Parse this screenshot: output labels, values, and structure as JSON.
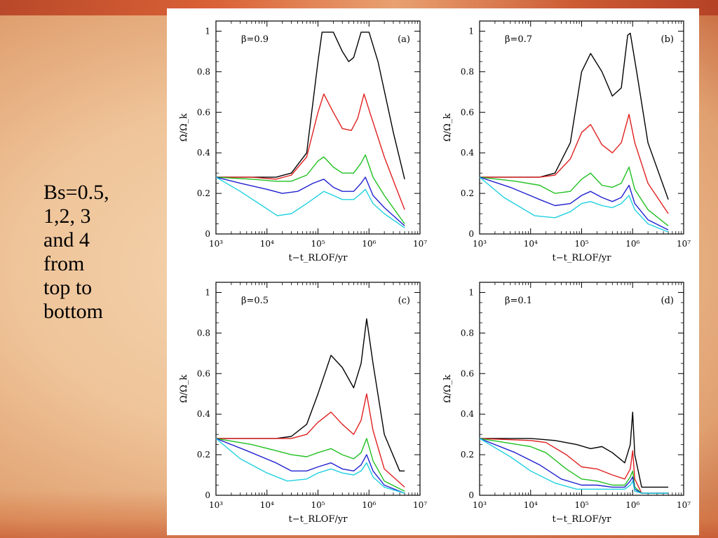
{
  "slide": {
    "side_text": "Bs=0.5,\n1,2, 3\nand 4\nfrom\ntop to\nbottom"
  },
  "colors": {
    "series": [
      "#000000",
      "#e02020",
      "#20c020",
      "#2020d0",
      "#20d0e0"
    ]
  },
  "chart_data": [
    {
      "type": "line",
      "panel": "(a)",
      "annotation": "β=0.9",
      "xlabel": "t−t_RLOF/yr",
      "ylabel": "Ω/Ω_k",
      "xscale": "log",
      "xlim": [
        1000,
        10000000
      ],
      "ylim": [
        0,
        1.05
      ],
      "xticks": [
        "10³",
        "10⁴",
        "10⁵",
        "10⁶",
        "10⁷"
      ],
      "yticks": [
        "0",
        "0.2",
        "0.4",
        "0.6",
        "0.8",
        "1"
      ],
      "series": [
        {
          "x": [
            1000,
            5000,
            15000,
            30000,
            60000,
            100000,
            120000,
            200000,
            300000,
            400000,
            500000,
            700000,
            1000000,
            1500000,
            3000000,
            5000000
          ],
          "y": [
            0.28,
            0.28,
            0.28,
            0.3,
            0.4,
            0.85,
            0.995,
            0.995,
            0.9,
            0.85,
            0.87,
            0.995,
            0.995,
            0.85,
            0.5,
            0.27
          ]
        },
        {
          "x": [
            1000,
            5000,
            15000,
            30000,
            60000,
            100000,
            130000,
            200000,
            300000,
            450000,
            600000,
            800000,
            1100000,
            2000000,
            3500000,
            5000000
          ],
          "y": [
            0.28,
            0.28,
            0.27,
            0.29,
            0.38,
            0.6,
            0.69,
            0.6,
            0.52,
            0.51,
            0.57,
            0.69,
            0.58,
            0.38,
            0.22,
            0.12
          ]
        },
        {
          "x": [
            1000,
            5000,
            15000,
            30000,
            60000,
            100000,
            130000,
            200000,
            300000,
            500000,
            700000,
            850000,
            1200000,
            2000000,
            5000000
          ],
          "y": [
            0.28,
            0.27,
            0.26,
            0.26,
            0.29,
            0.36,
            0.38,
            0.33,
            0.3,
            0.3,
            0.35,
            0.39,
            0.28,
            0.19,
            0.05
          ]
        },
        {
          "x": [
            1000,
            3000,
            10000,
            20000,
            40000,
            80000,
            130000,
            200000,
            300000,
            500000,
            700000,
            850000,
            1200000,
            2000000,
            5000000
          ],
          "y": [
            0.28,
            0.25,
            0.22,
            0.2,
            0.21,
            0.25,
            0.27,
            0.23,
            0.21,
            0.21,
            0.25,
            0.28,
            0.19,
            0.13,
            0.04
          ]
        },
        {
          "x": [
            1000,
            3000,
            8000,
            16000,
            30000,
            60000,
            130000,
            200000,
            300000,
            500000,
            700000,
            850000,
            1200000,
            2000000,
            5000000
          ],
          "y": [
            0.28,
            0.21,
            0.14,
            0.09,
            0.1,
            0.15,
            0.21,
            0.19,
            0.17,
            0.17,
            0.2,
            0.22,
            0.15,
            0.1,
            0.03
          ]
        }
      ]
    },
    {
      "type": "line",
      "panel": "(b)",
      "annotation": "β=0.7",
      "xlabel": "t−t_RLOF/yr",
      "ylabel": "Ω/Ω_k",
      "xscale": "log",
      "xlim": [
        1000,
        10000000
      ],
      "ylim": [
        0,
        1.05
      ],
      "xticks": [
        "10³",
        "10⁴",
        "10⁵",
        "10⁶",
        "10⁷"
      ],
      "yticks": [
        "0",
        "0.2",
        "0.4",
        "0.6",
        "0.8",
        "1"
      ],
      "series": [
        {
          "x": [
            1000,
            5000,
            15000,
            30000,
            60000,
            100000,
            150000,
            250000,
            400000,
            600000,
            800000,
            900000,
            1200000,
            2000000,
            5000000
          ],
          "y": [
            0.28,
            0.28,
            0.28,
            0.3,
            0.45,
            0.8,
            0.89,
            0.8,
            0.68,
            0.72,
            0.98,
            0.99,
            0.8,
            0.45,
            0.17
          ]
        },
        {
          "x": [
            1000,
            5000,
            15000,
            30000,
            60000,
            100000,
            150000,
            250000,
            400000,
            600000,
            850000,
            1100000,
            2000000,
            5000000
          ],
          "y": [
            0.28,
            0.28,
            0.28,
            0.29,
            0.37,
            0.5,
            0.54,
            0.44,
            0.4,
            0.45,
            0.59,
            0.45,
            0.25,
            0.1
          ]
        },
        {
          "x": [
            1000,
            5000,
            15000,
            30000,
            60000,
            100000,
            150000,
            250000,
            400000,
            600000,
            850000,
            1100000,
            2000000,
            5000000
          ],
          "y": [
            0.28,
            0.26,
            0.24,
            0.2,
            0.21,
            0.27,
            0.3,
            0.24,
            0.23,
            0.25,
            0.33,
            0.22,
            0.12,
            0.04
          ]
        },
        {
          "x": [
            1000,
            4000,
            15000,
            30000,
            60000,
            100000,
            150000,
            250000,
            400000,
            600000,
            850000,
            1100000,
            2000000,
            5000000
          ],
          "y": [
            0.28,
            0.23,
            0.17,
            0.14,
            0.15,
            0.19,
            0.21,
            0.18,
            0.16,
            0.18,
            0.24,
            0.15,
            0.07,
            0.02
          ]
        },
        {
          "x": [
            1000,
            3000,
            12000,
            30000,
            60000,
            100000,
            150000,
            250000,
            400000,
            600000,
            850000,
            1100000,
            2000000,
            5000000
          ],
          "y": [
            0.28,
            0.18,
            0.09,
            0.08,
            0.11,
            0.15,
            0.16,
            0.14,
            0.13,
            0.15,
            0.19,
            0.12,
            0.05,
            0.01
          ]
        }
      ]
    },
    {
      "type": "line",
      "panel": "(c)",
      "annotation": "β=0.5",
      "xlabel": "t−t_RLOF/yr",
      "ylabel": "Ω/Ω_k",
      "xscale": "log",
      "xlim": [
        1000,
        10000000
      ],
      "ylim": [
        0,
        1.05
      ],
      "xticks": [
        "10³",
        "10⁴",
        "10⁵",
        "10⁶",
        "10⁷"
      ],
      "yticks": [
        "0",
        "0.2",
        "0.4",
        "0.6",
        "0.8",
        "1"
      ],
      "series": [
        {
          "x": [
            1000,
            5000,
            15000,
            30000,
            60000,
            100000,
            180000,
            300000,
            500000,
            700000,
            900000,
            1200000,
            2000000,
            4000000,
            5000000
          ],
          "y": [
            0.28,
            0.28,
            0.28,
            0.29,
            0.35,
            0.5,
            0.69,
            0.63,
            0.53,
            0.65,
            0.87,
            0.65,
            0.3,
            0.12,
            0.12
          ]
        },
        {
          "x": [
            1000,
            5000,
            15000,
            30000,
            60000,
            100000,
            180000,
            300000,
            500000,
            700000,
            900000,
            1200000,
            2000000,
            5000000
          ],
          "y": [
            0.28,
            0.28,
            0.28,
            0.28,
            0.3,
            0.36,
            0.41,
            0.35,
            0.3,
            0.37,
            0.5,
            0.32,
            0.13,
            0.04
          ]
        },
        {
          "x": [
            1000,
            5000,
            15000,
            30000,
            60000,
            100000,
            180000,
            300000,
            500000,
            700000,
            900000,
            1200000,
            2000000,
            5000000
          ],
          "y": [
            0.28,
            0.25,
            0.22,
            0.2,
            0.19,
            0.21,
            0.23,
            0.2,
            0.18,
            0.21,
            0.28,
            0.17,
            0.07,
            0.02
          ]
        },
        {
          "x": [
            1000,
            4000,
            15000,
            30000,
            60000,
            100000,
            180000,
            300000,
            500000,
            700000,
            900000,
            1200000,
            2000000,
            5000000
          ],
          "y": [
            0.28,
            0.22,
            0.16,
            0.12,
            0.12,
            0.14,
            0.16,
            0.13,
            0.12,
            0.15,
            0.2,
            0.12,
            0.05,
            0.01
          ]
        },
        {
          "x": [
            1000,
            3000,
            10000,
            25000,
            60000,
            100000,
            180000,
            300000,
            500000,
            700000,
            900000,
            1200000,
            2000000,
            5000000
          ],
          "y": [
            0.28,
            0.18,
            0.11,
            0.07,
            0.08,
            0.11,
            0.13,
            0.11,
            0.1,
            0.12,
            0.16,
            0.09,
            0.04,
            0.01
          ]
        }
      ]
    },
    {
      "type": "line",
      "panel": "(d)",
      "annotation": "β=0.1",
      "xlabel": "t−t_RLOF/yr",
      "ylabel": "Ω/Ω_k",
      "xscale": "log",
      "xlim": [
        1000,
        10000000
      ],
      "ylim": [
        0,
        1.05
      ],
      "xticks": [
        "10³",
        "10⁴",
        "10⁵",
        "10⁶",
        "10⁷"
      ],
      "yticks": [
        "0",
        "0.2",
        "0.4",
        "0.6",
        "0.8",
        "1"
      ],
      "series": [
        {
          "x": [
            1000,
            10000,
            30000,
            80000,
            150000,
            250000,
            400000,
            700000,
            900000,
            1000000,
            1100000,
            1500000,
            3000000,
            5000000
          ],
          "y": [
            0.28,
            0.28,
            0.27,
            0.25,
            0.23,
            0.24,
            0.21,
            0.16,
            0.25,
            0.41,
            0.2,
            0.04,
            0.04,
            0.04
          ]
        },
        {
          "x": [
            1000,
            10000,
            20000,
            50000,
            100000,
            200000,
            400000,
            700000,
            900000,
            1000000,
            1100000,
            1500000,
            3000000,
            5000000
          ],
          "y": [
            0.28,
            0.27,
            0.26,
            0.2,
            0.14,
            0.13,
            0.1,
            0.08,
            0.13,
            0.22,
            0.08,
            0.01,
            0.01,
            0.01
          ]
        },
        {
          "x": [
            1000,
            10000,
            20000,
            50000,
            100000,
            200000,
            400000,
            700000,
            900000,
            1000000,
            1100000,
            1500000,
            3000000,
            5000000
          ],
          "y": [
            0.28,
            0.24,
            0.21,
            0.13,
            0.08,
            0.07,
            0.05,
            0.05,
            0.09,
            0.12,
            0.04,
            0.01,
            0.01,
            0.01
          ]
        },
        {
          "x": [
            1000,
            5000,
            15000,
            40000,
            100000,
            200000,
            400000,
            700000,
            900000,
            1000000,
            1100000,
            1500000,
            3000000,
            5000000
          ],
          "y": [
            0.28,
            0.21,
            0.15,
            0.08,
            0.05,
            0.05,
            0.04,
            0.04,
            0.07,
            0.09,
            0.03,
            0.01,
            0.01,
            0.01
          ]
        },
        {
          "x": [
            1000,
            4000,
            10000,
            30000,
            80000,
            200000,
            400000,
            700000,
            900000,
            1000000,
            1100000,
            1500000,
            3000000,
            5000000
          ],
          "y": [
            0.28,
            0.19,
            0.12,
            0.06,
            0.03,
            0.03,
            0.03,
            0.03,
            0.05,
            0.07,
            0.02,
            0.01,
            0.01,
            0.01
          ]
        }
      ]
    }
  ]
}
